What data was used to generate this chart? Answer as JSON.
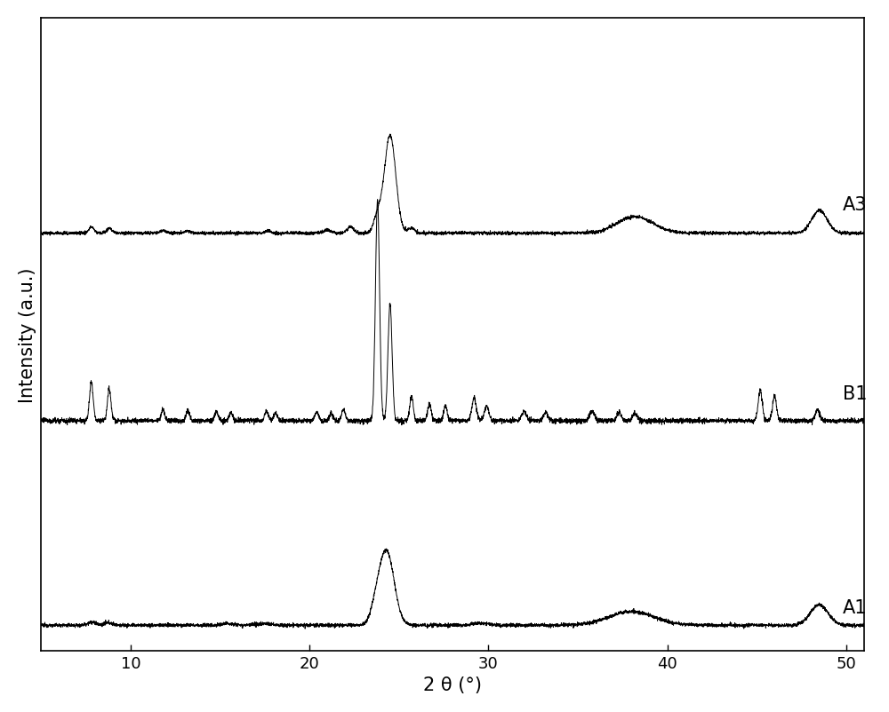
{
  "title": "",
  "xlabel": "2 θ (°)",
  "ylabel": "Intensity (a.u.)",
  "xlim": [
    5,
    51
  ],
  "xticks": [
    10,
    20,
    30,
    40,
    50
  ],
  "curve_labels": [
    "A1",
    "B1",
    "A3"
  ],
  "offsets": [
    0.0,
    1.4,
    2.7
  ],
  "line_color": "#000000",
  "line_width": 0.7,
  "background_color": "#ffffff",
  "label_fontsize": 15,
  "tick_fontsize": 13,
  "figsize": [
    10.0,
    8.03
  ]
}
